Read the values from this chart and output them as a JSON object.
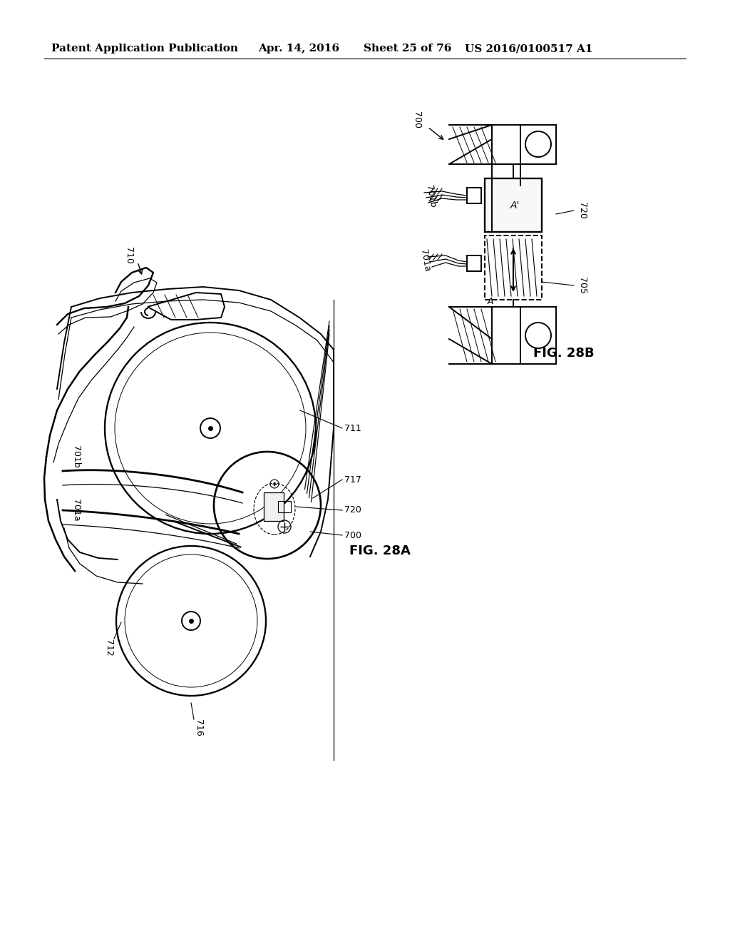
{
  "bg_color": "#ffffff",
  "header_text": "Patent Application Publication",
  "header_date": "Apr. 14, 2016",
  "header_sheet": "Sheet 25 of 76",
  "header_patent": "US 2016/0100517 A1",
  "header_fontsize": 11,
  "fig_28A": "FIG. 28A",
  "fig_28B": "FIG. 28B",
  "line_color": "#000000",
  "lw_main": 1.4,
  "lw_thin": 0.9,
  "lw_thick": 2.0
}
